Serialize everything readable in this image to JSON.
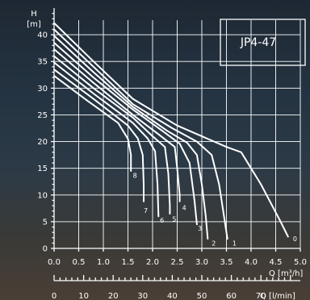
{
  "chart_data": {
    "type": "line",
    "title": "JP4-47",
    "ylabel_lines": [
      "H",
      "[m]"
    ],
    "xlabel": "Q [m³/h]",
    "x2label": "Q [l/min]",
    "xlim": [
      0,
      5
    ],
    "ylim": [
      0,
      45
    ],
    "x_ticks": [
      "0.0",
      "0.5",
      "1.0",
      "1.5",
      "2.0",
      "2.5",
      "3.0",
      "3.5",
      "4.0",
      "4.5",
      "5.0"
    ],
    "y_ticks": [
      "0",
      "5",
      "10",
      "15",
      "20",
      "25",
      "30",
      "35",
      "40"
    ],
    "x2_ticks": [
      "0",
      "10",
      "20",
      "30",
      "40",
      "50",
      "60",
      "70"
    ],
    "grid": true,
    "series": [
      {
        "name": "0",
        "points": [
          [
            0,
            42.2
          ],
          [
            0.8,
            35
          ],
          [
            1.6,
            28
          ],
          [
            2.5,
            23
          ],
          [
            3.5,
            19
          ],
          [
            3.8,
            18
          ],
          [
            4.2,
            12
          ],
          [
            4.6,
            5
          ],
          [
            4.75,
            2.2
          ]
        ]
      },
      {
        "name": "1",
        "points": [
          [
            0,
            41
          ],
          [
            0.8,
            34
          ],
          [
            1.6,
            27
          ],
          [
            2.4,
            22.5
          ],
          [
            2.9,
            20
          ],
          [
            3.2,
            17.5
          ],
          [
            3.35,
            12
          ],
          [
            3.45,
            6
          ],
          [
            3.52,
            1.8
          ]
        ]
      },
      {
        "name": "2",
        "points": [
          [
            0,
            39.8
          ],
          [
            0.8,
            33
          ],
          [
            1.6,
            26.5
          ],
          [
            2.3,
            22
          ],
          [
            2.7,
            19.8
          ],
          [
            2.9,
            17.5
          ],
          [
            3.0,
            12
          ],
          [
            3.08,
            6
          ],
          [
            3.12,
            1.8
          ]
        ]
      },
      {
        "name": "3",
        "points": [
          [
            0,
            38.5
          ],
          [
            0.8,
            32
          ],
          [
            1.6,
            26
          ],
          [
            2.2,
            22
          ],
          [
            2.55,
            19.6
          ],
          [
            2.75,
            16
          ],
          [
            2.85,
            9
          ],
          [
            2.9,
            4.5
          ]
        ]
      },
      {
        "name": "4",
        "points": [
          [
            0,
            37.3
          ],
          [
            0.8,
            31
          ],
          [
            1.6,
            25
          ],
          [
            2.1,
            21.5
          ],
          [
            2.45,
            19
          ],
          [
            2.5,
            15
          ],
          [
            2.55,
            10
          ],
          [
            2.55,
            8.8
          ]
        ]
      },
      {
        "name": "5",
        "points": [
          [
            0,
            36
          ],
          [
            0.8,
            30
          ],
          [
            1.6,
            24.5
          ],
          [
            2.0,
            21
          ],
          [
            2.25,
            19
          ],
          [
            2.32,
            14
          ],
          [
            2.35,
            8
          ],
          [
            2.35,
            6.5
          ]
        ]
      },
      {
        "name": "6",
        "points": [
          [
            0,
            34.8
          ],
          [
            0.8,
            29
          ],
          [
            1.6,
            23.5
          ],
          [
            1.9,
            20.6
          ],
          [
            2.05,
            18.2
          ],
          [
            2.1,
            12
          ],
          [
            2.12,
            6
          ]
        ]
      },
      {
        "name": "7",
        "points": [
          [
            0,
            33.5
          ],
          [
            0.8,
            28
          ],
          [
            1.5,
            23
          ],
          [
            1.7,
            20.6
          ],
          [
            1.8,
            17.5
          ],
          [
            1.82,
            12
          ],
          [
            1.82,
            8.8
          ]
        ]
      },
      {
        "name": "8",
        "points": [
          [
            0,
            32.3
          ],
          [
            0.7,
            27.5
          ],
          [
            1.3,
            23.5
          ],
          [
            1.5,
            20.5
          ],
          [
            1.56,
            17.5
          ],
          [
            1.56,
            14.5
          ]
        ]
      }
    ],
    "label_pos": [
      [
        4.85,
        1.8
      ],
      [
        3.62,
        1.0
      ],
      [
        3.2,
        1.0
      ],
      [
        2.92,
        3.8
      ],
      [
        2.6,
        7.6
      ],
      [
        2.4,
        5.5
      ],
      [
        2.15,
        5.3
      ],
      [
        1.82,
        7.1
      ],
      [
        1.6,
        13.7
      ]
    ]
  }
}
